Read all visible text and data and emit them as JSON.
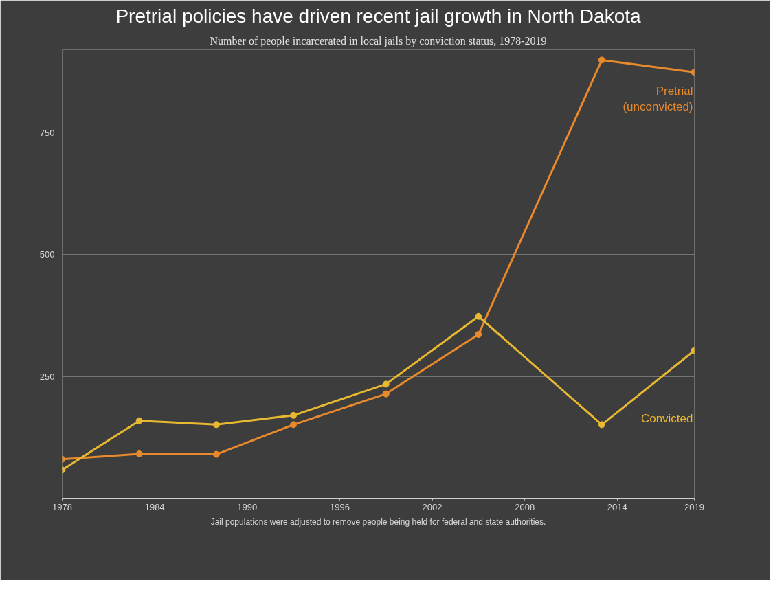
{
  "chart_data": {
    "type": "line",
    "title": "Pretrial policies have driven recent jail growth in North Dakota",
    "subtitle": "Number of people incarcerated in local jails by conviction status, 1978-2019",
    "x": [
      1978,
      1983,
      1988,
      1993,
      1999,
      2005,
      2013,
      2019
    ],
    "series": [
      {
        "name": "Pretrial\n(unconvicted)",
        "color": "#e8892b",
        "values": [
          80,
          91,
          90,
          151,
          214,
          336,
          899,
          874
        ]
      },
      {
        "name": "Convicted",
        "color": "#e8b830",
        "values": [
          58,
          159,
          151,
          170,
          234,
          373,
          151,
          303
        ]
      }
    ],
    "xlim": [
      1978,
      2019
    ],
    "xticks": [
      1978,
      1984,
      1990,
      1996,
      2002,
      2008,
      2014,
      2019
    ],
    "ylim": [
      0,
      920
    ],
    "yticks": [
      {
        "value": 0,
        "label": null
      },
      250,
      500,
      750
    ],
    "grid": "y",
    "marker": "circle",
    "line_style": "solid",
    "annotations": [
      "Jail populations were adjusted to remove people being held for federal and state authorities."
    ]
  }
}
